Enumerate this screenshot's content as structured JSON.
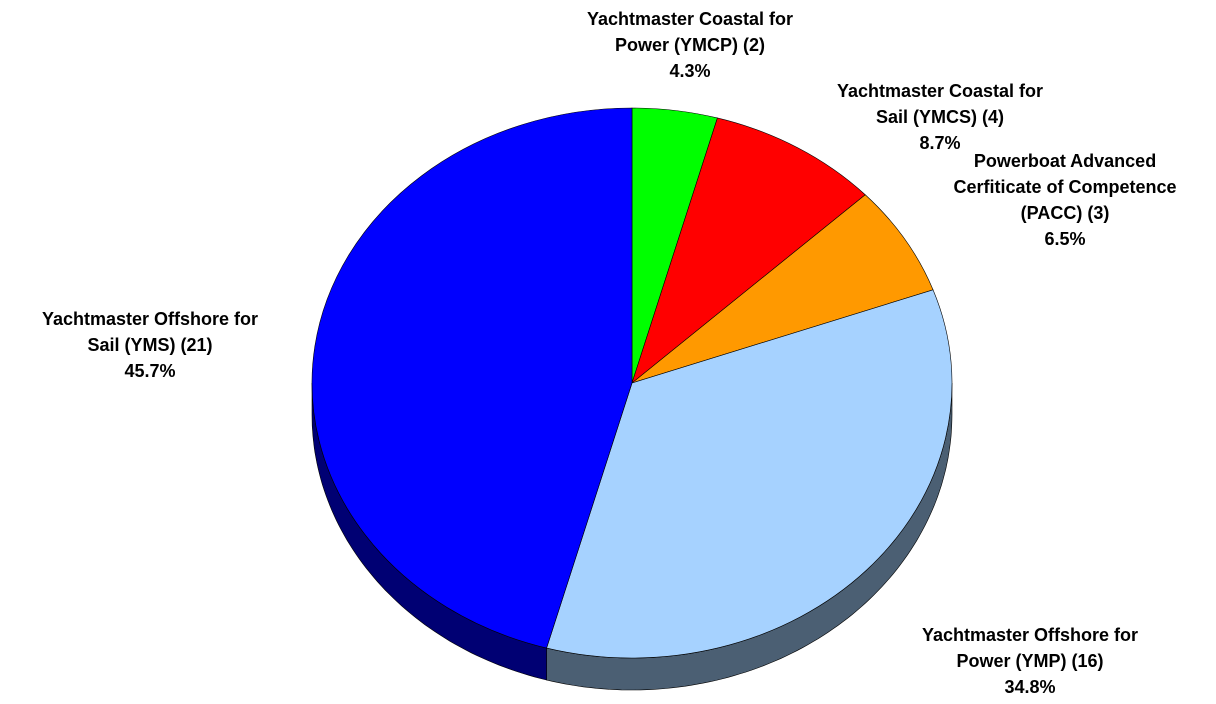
{
  "chart_data": {
    "type": "pie",
    "categories": [
      [
        "Yachtmaster Coastal for",
        "Power (YMCP) (2)"
      ],
      [
        "Yachtmaster Coastal for",
        "Sail (YMCS) (4)"
      ],
      [
        "Powerboat Advanced",
        "Cerfiticate of Competence",
        "(PACC) (3)"
      ],
      [
        "Yachtmaster Offshore for",
        "Power (YMP) (16)"
      ],
      [
        "Yachtmaster Offshore for",
        "Sail (YMS) (21)"
      ]
    ],
    "values": [
      4.3,
      8.7,
      6.5,
      34.8,
      45.7
    ],
    "value_labels": [
      "4.3%",
      "8.7%",
      "6.5%",
      "34.8%",
      "45.7%"
    ],
    "colors": [
      "#00ff00",
      "#ff0000",
      "#ff9900",
      "#a6d2ff",
      "#0000ff"
    ]
  }
}
